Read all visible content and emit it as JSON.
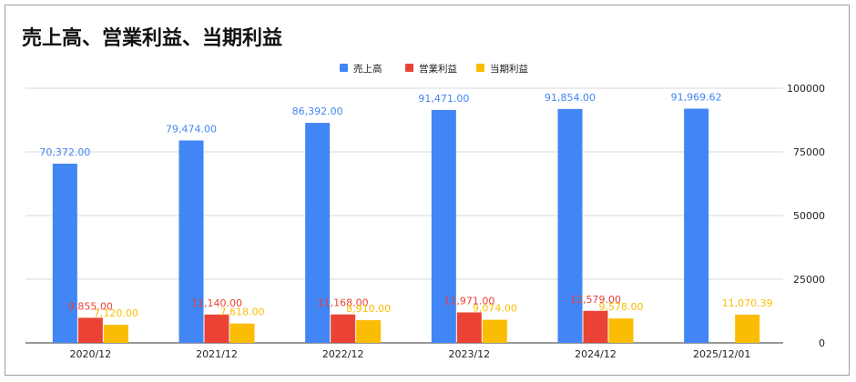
{
  "chart_data": {
    "type": "bar",
    "title": "売上高、営業利益、当期利益",
    "categories": [
      "2020/12",
      "2021/12",
      "2022/12",
      "2023/12",
      "2024/12",
      "2025/12/01"
    ],
    "series": [
      {
        "name": "売上高",
        "color": "#4285f4",
        "values": [
          70372,
          79474,
          86392,
          91471,
          91854,
          91969.62
        ],
        "labels": [
          "70,372.00",
          "79,474.00",
          "86,392.00",
          "91,471.00",
          "91,854.00",
          "91,969.62"
        ]
      },
      {
        "name": "営業利益",
        "color": "#ea4335",
        "values": [
          9855,
          11140,
          11168,
          11971,
          12579,
          null
        ],
        "labels": [
          "9,855.00",
          "11,140.00",
          "11,168.00",
          "11,971.00",
          "12,579.00",
          ""
        ]
      },
      {
        "name": "当期利益",
        "color": "#fbbc04",
        "values": [
          7120,
          7618,
          8910,
          9074,
          9578,
          11070.39
        ],
        "labels": [
          "7,120.00",
          "7,618.00",
          "8,910.00",
          "9,074.00",
          "9,578.00",
          "11,070.39"
        ]
      }
    ],
    "ylim": [
      0,
      100000
    ],
    "yticks": [
      0,
      25000,
      50000,
      75000,
      100000
    ],
    "ytick_labels": [
      "0",
      "25000",
      "50000",
      "75000",
      "100000"
    ],
    "y_axis_side": "right",
    "grid": true,
    "legend_position": "top"
  }
}
